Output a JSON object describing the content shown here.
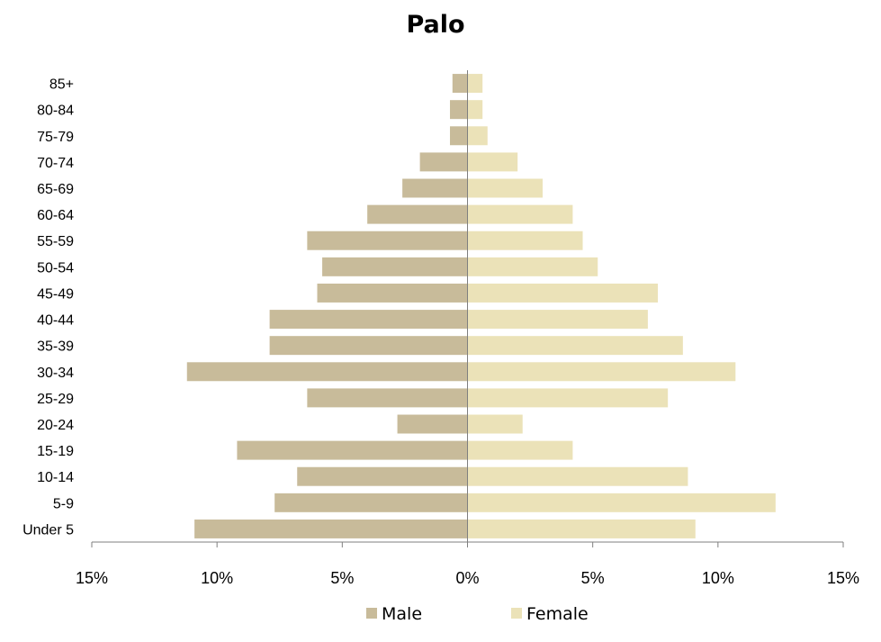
{
  "chart_data": {
    "type": "bar",
    "orientation": "horizontal",
    "title": "Palo",
    "categories": [
      "85+",
      "80-84",
      "75-79",
      "70-74",
      "65-69",
      "60-64",
      "55-59",
      "50-54",
      "45-49",
      "40-44",
      "35-39",
      "30-34",
      "25-29",
      "20-24",
      "15-19",
      "10-14",
      "5-9",
      "Under 5"
    ],
    "series": [
      {
        "name": "Male",
        "color": "#c8bb9a",
        "values": [
          -0.6,
          -0.7,
          -0.7,
          -1.9,
          -2.6,
          -4.0,
          -6.4,
          -5.8,
          -6.0,
          -7.9,
          -7.9,
          -11.2,
          -6.4,
          -2.8,
          -9.2,
          -6.8,
          -7.7,
          -10.9
        ]
      },
      {
        "name": "Female",
        "color": "#ebe2b8",
        "values": [
          0.6,
          0.6,
          0.8,
          2.0,
          3.0,
          4.2,
          4.6,
          5.2,
          7.6,
          7.2,
          8.6,
          10.7,
          8.0,
          2.2,
          4.2,
          8.8,
          12.3,
          9.1
        ]
      }
    ],
    "xlim": [
      -15,
      15
    ],
    "xticks": [
      -15,
      -10,
      -5,
      0,
      5,
      10,
      15
    ],
    "xtick_labels": [
      "15%",
      "10%",
      "5%",
      "0%",
      "5%",
      "10%",
      "15%"
    ],
    "grid": false,
    "legend_position": "bottom"
  }
}
